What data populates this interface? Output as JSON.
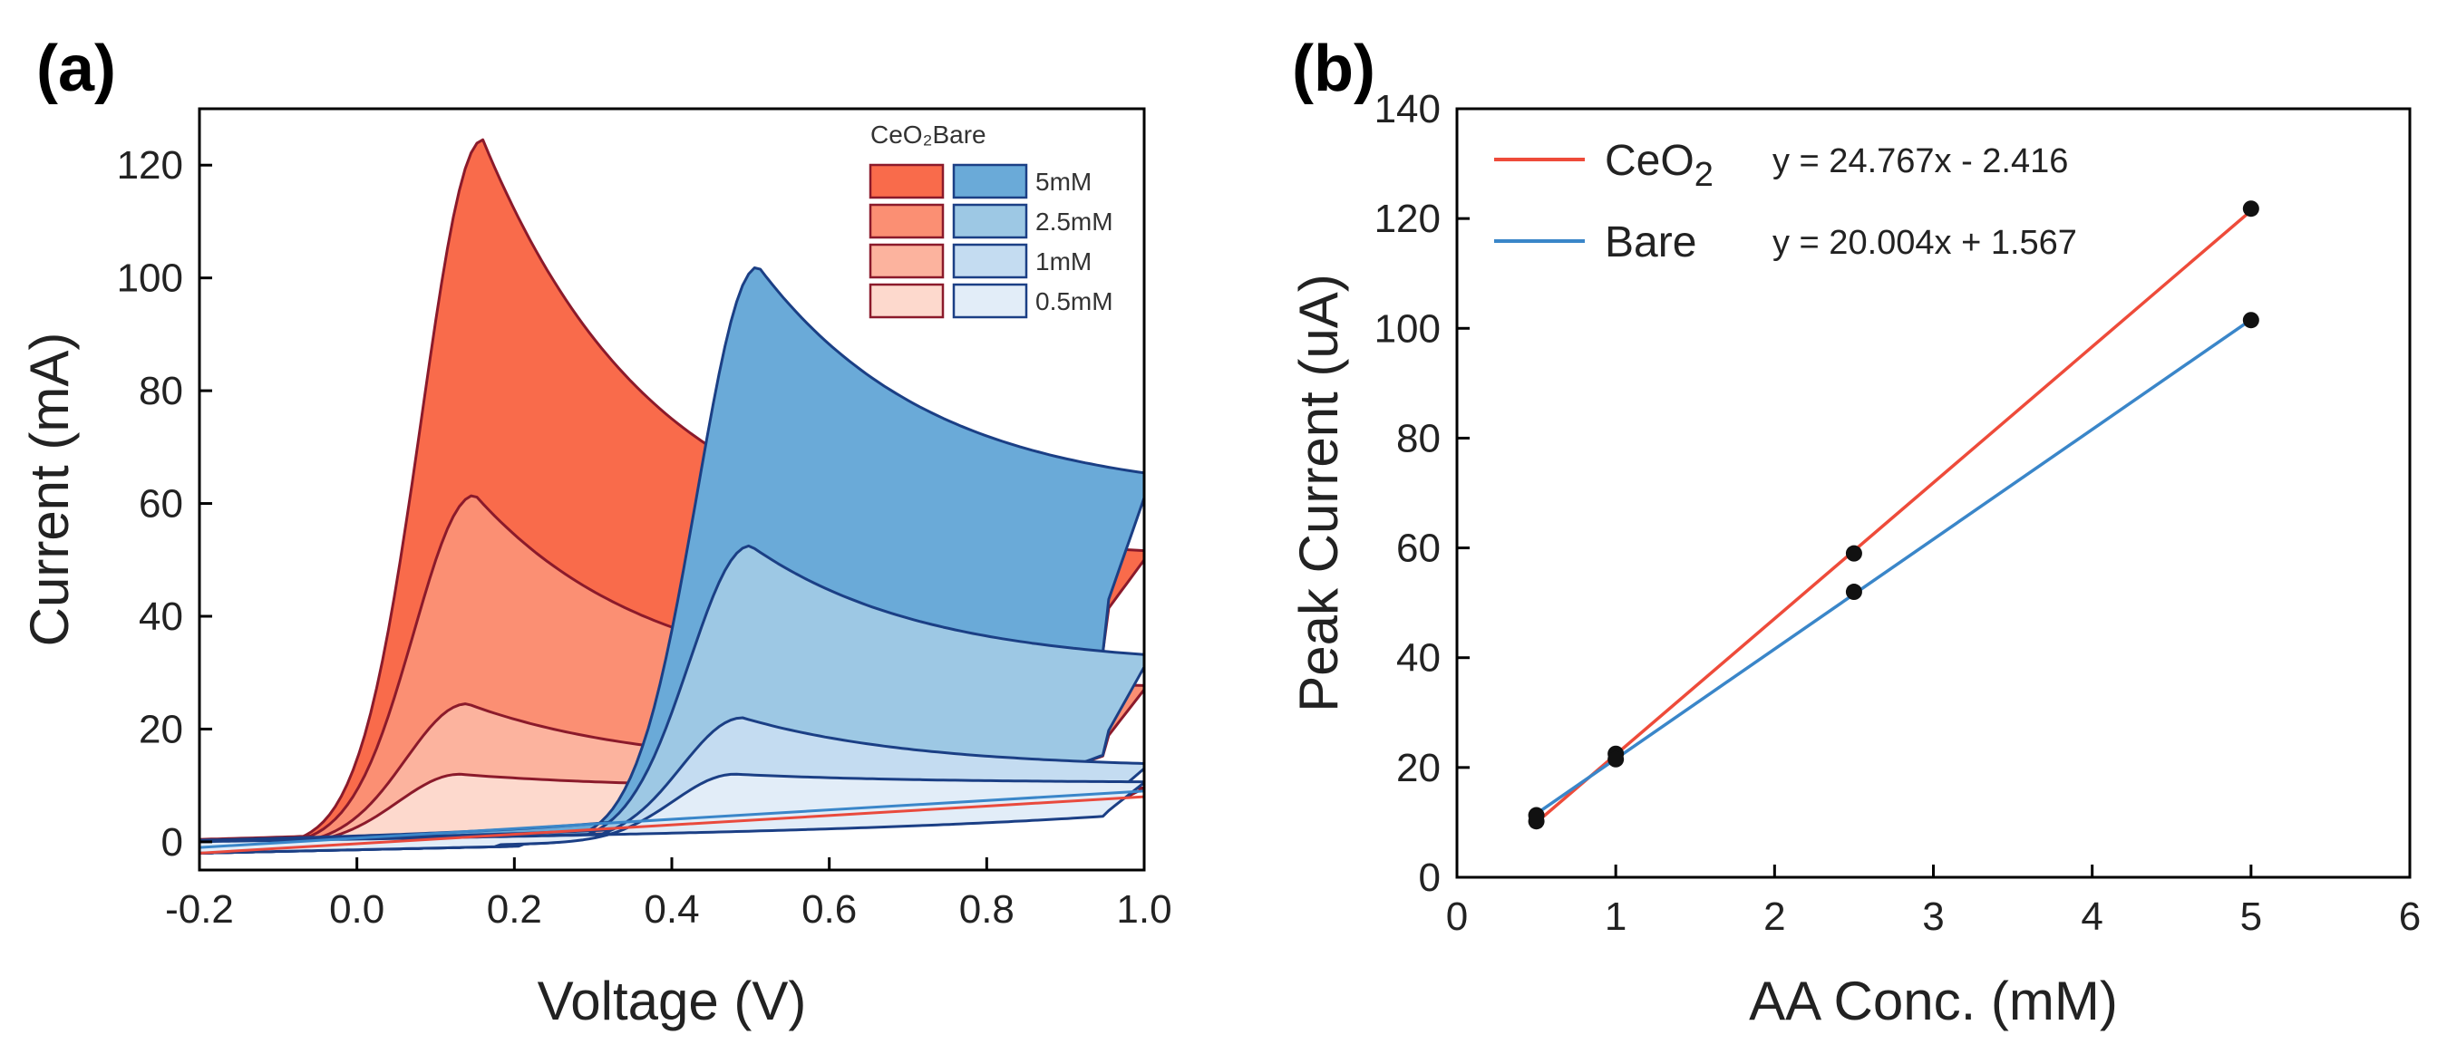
{
  "chart_data": [
    {
      "type": "area",
      "panel_label": "(a)",
      "title": "",
      "xlabel": "Voltage (V)",
      "ylabel": "Current (mA)",
      "xlim": [
        -0.2,
        1.0
      ],
      "ylim": [
        -5,
        130
      ],
      "x_ticks": [
        "-0.2",
        "0.0",
        "0.2",
        "0.4",
        "0.6",
        "0.8",
        "1.0"
      ],
      "y_ticks": [
        "0",
        "20",
        "40",
        "60",
        "80",
        "100",
        "120"
      ],
      "legend": {
        "header": "CeO₂Bare",
        "placement": "top-right",
        "entries": [
          "5mM",
          "2.5mM",
          "1mM",
          "0.5mM"
        ]
      },
      "colors": {
        "ceo2": [
          "#f96b4b",
          "#fb8f73",
          "#fcb39e",
          "#fdd9cd"
        ],
        "bare": [
          "#6aaad8",
          "#9dc8e4",
          "#c4dcf1",
          "#e2edf8"
        ],
        "ceo2_edge": "#8b1a2b",
        "bare_edge": "#1b3f85",
        "baseline_red": "#e94a3d",
        "baseline_blue": "#3a86c9"
      },
      "series": [
        {
          "group": "CeO2",
          "name": "5mM",
          "peak_x": 0.16,
          "peak_y": 124.5,
          "end_forward": 50,
          "end_return": 40.5,
          "return_lambda": 4.2
        },
        {
          "group": "CeO2",
          "name": "2.5mM",
          "peak_x": 0.15,
          "peak_y": 61.5,
          "end_forward": 27,
          "end_return": 18,
          "return_lambda": 4.2
        },
        {
          "group": "CeO2",
          "name": "1mM",
          "peak_x": 0.14,
          "peak_y": 24.5,
          "end_forward": 13,
          "end_return": 8,
          "return_lambda": 4.2
        },
        {
          "group": "CeO2",
          "name": "0.5mM",
          "peak_x": 0.13,
          "peak_y": 12,
          "end_forward": 9.5,
          "end_return": 6,
          "return_lambda": 4.2
        },
        {
          "group": "Bare",
          "name": "5mM",
          "peak_x": 0.51,
          "peak_y": 102,
          "end_forward": 61,
          "end_return": 41,
          "return_lambda": 4.6
        },
        {
          "group": "Bare",
          "name": "2.5mM",
          "peak_x": 0.5,
          "peak_y": 52.5,
          "end_forward": 31,
          "end_return": 18.5,
          "return_lambda": 4.6
        },
        {
          "group": "Bare",
          "name": "1mM",
          "peak_x": 0.49,
          "peak_y": 22,
          "end_forward": 13,
          "end_return": 7,
          "return_lambda": 4.6
        },
        {
          "group": "Bare",
          "name": "0.5mM",
          "peak_x": 0.48,
          "peak_y": 12,
          "end_forward": 10.5,
          "end_return": 5,
          "return_lambda": 4.6
        }
      ]
    },
    {
      "type": "scatter",
      "panel_label": "(b)",
      "title": "",
      "xlabel": "AA Conc. (mM)",
      "ylabel": "Peak Current (uA)",
      "xlim": [
        0,
        6
      ],
      "ylim": [
        0,
        140
      ],
      "x_ticks": [
        "0",
        "1",
        "2",
        "3",
        "4",
        "5",
        "6"
      ],
      "y_ticks": [
        "0",
        "20",
        "40",
        "60",
        "80",
        "100",
        "120",
        "140"
      ],
      "legend_placement": "top-left",
      "series": [
        {
          "name": "CeO",
          "subscript": "2",
          "equation": "y = 24.767x - 2.416",
          "slope": 24.767,
          "intercept": -2.416,
          "color": "#ee4b3a",
          "points": [
            {
              "x": 0.5,
              "y": 10.2
            },
            {
              "x": 1,
              "y": 22.5
            },
            {
              "x": 2.5,
              "y": 59
            },
            {
              "x": 5,
              "y": 121.8
            }
          ]
        },
        {
          "name": "Bare",
          "subscript": "",
          "equation": "y = 20.004x + 1.567",
          "slope": 20.004,
          "intercept": 1.567,
          "color": "#3a86c9",
          "points": [
            {
              "x": 0.5,
              "y": 11.3
            },
            {
              "x": 1,
              "y": 21.5
            },
            {
              "x": 2.5,
              "y": 52
            },
            {
              "x": 5,
              "y": 101.5
            }
          ]
        }
      ]
    }
  ]
}
